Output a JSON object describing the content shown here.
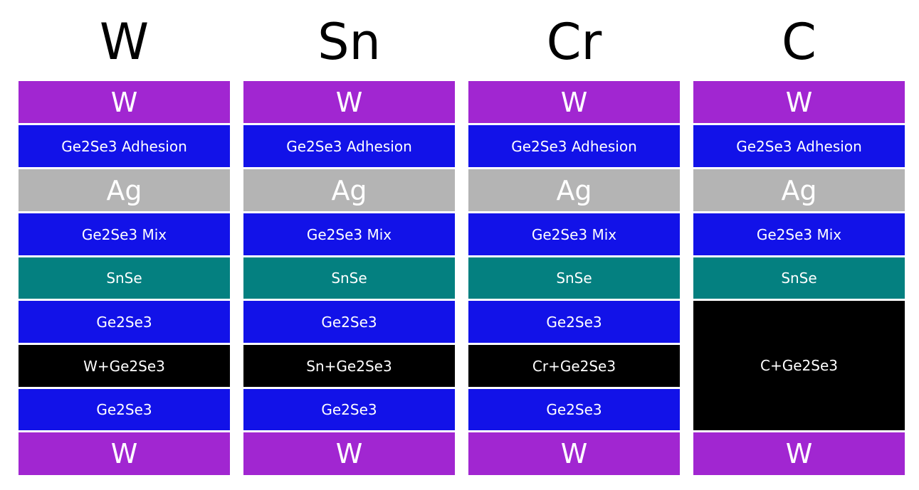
{
  "colors": {
    "W": "#a126d1",
    "Ge2Se3": "#1212e8",
    "Ag": "#b4b4b4",
    "SnSe": "#048080",
    "doped": "#000000"
  },
  "columns": [
    {
      "title": "W",
      "layers": [
        {
          "label": "W",
          "material": "W"
        },
        {
          "label": "Ge2Se3 Adhesion",
          "material": "Ge2Se3"
        },
        {
          "label": "Ag",
          "material": "Ag"
        },
        {
          "label": "Ge2Se3 Mix",
          "material": "Ge2Se3"
        },
        {
          "label": "SnSe",
          "material": "SnSe"
        },
        {
          "label": "Ge2Se3",
          "material": "Ge2Se3"
        },
        {
          "label": "W+Ge2Se3",
          "material": "doped"
        },
        {
          "label": "Ge2Se3",
          "material": "Ge2Se3"
        },
        {
          "label": "W",
          "material": "W"
        }
      ]
    },
    {
      "title": "Sn",
      "layers": [
        {
          "label": "W",
          "material": "W"
        },
        {
          "label": "Ge2Se3 Adhesion",
          "material": "Ge2Se3"
        },
        {
          "label": "Ag",
          "material": "Ag"
        },
        {
          "label": "Ge2Se3 Mix",
          "material": "Ge2Se3"
        },
        {
          "label": "SnSe",
          "material": "SnSe"
        },
        {
          "label": "Ge2Se3",
          "material": "Ge2Se3"
        },
        {
          "label": "Sn+Ge2Se3",
          "material": "doped"
        },
        {
          "label": "Ge2Se3",
          "material": "Ge2Se3"
        },
        {
          "label": "W",
          "material": "W"
        }
      ]
    },
    {
      "title": "Cr",
      "layers": [
        {
          "label": "W",
          "material": "W"
        },
        {
          "label": "Ge2Se3 Adhesion",
          "material": "Ge2Se3"
        },
        {
          "label": "Ag",
          "material": "Ag"
        },
        {
          "label": "Ge2Se3 Mix",
          "material": "Ge2Se3"
        },
        {
          "label": "SnSe",
          "material": "SnSe"
        },
        {
          "label": "Ge2Se3",
          "material": "Ge2Se3"
        },
        {
          "label": "Cr+Ge2Se3",
          "material": "doped"
        },
        {
          "label": "Ge2Se3",
          "material": "Ge2Se3"
        },
        {
          "label": "W",
          "material": "W"
        }
      ]
    },
    {
      "title": "C",
      "layers": [
        {
          "label": "W",
          "material": "W"
        },
        {
          "label": "Ge2Se3 Adhesion",
          "material": "Ge2Se3"
        },
        {
          "label": "Ag",
          "material": "Ag"
        },
        {
          "label": "Ge2Se3 Mix",
          "material": "Ge2Se3"
        },
        {
          "label": "SnSe",
          "material": "SnSe"
        },
        {
          "label": "C+Ge2Se3",
          "material": "doped"
        },
        {
          "label": "W",
          "material": "W"
        }
      ]
    }
  ]
}
